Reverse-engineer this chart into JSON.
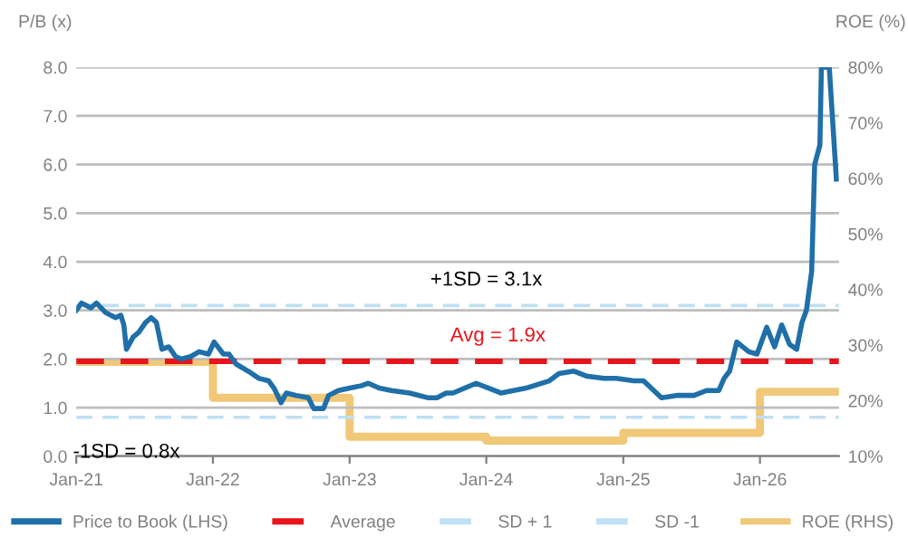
{
  "chart_data": {
    "type": "line",
    "ylabel": "P/B (x)",
    "y2label": "ROE (%)",
    "series": [
      {
        "name": "Price to Book (LHS)",
        "color": "#1f6fa8",
        "x": [
          "2021-01-01",
          "2021-01-15",
          "2021-02-09",
          "2021-02-24",
          "2021-03-21",
          "2021-04-16",
          "2021-04-30",
          "2021-05-08",
          "2021-05-15",
          "2021-06-02",
          "2021-06-17",
          "2021-07-05",
          "2021-07-20",
          "2021-08-03",
          "2021-08-18",
          "2021-09-05",
          "2021-09-23",
          "2021-10-08",
          "2021-11-03",
          "2021-11-25",
          "2021-12-20",
          "2022-01-04",
          "2022-01-29",
          "2022-02-13",
          "2022-03-03",
          "2022-04-05",
          "2022-05-04",
          "2022-05-30",
          "2022-06-13",
          "2022-07-02",
          "2022-07-16",
          "2022-08-11",
          "2022-09-13",
          "2022-09-27",
          "2022-10-23",
          "2022-11-06",
          "2022-12-02",
          "2023-01-01",
          "2023-02-02",
          "2023-02-20",
          "2023-03-21",
          "2023-04-23",
          "2023-06-10",
          "2023-07-31",
          "2023-08-22",
          "2023-09-16",
          "2023-10-04",
          "2023-12-05",
          "2024-02-09",
          "2024-04-16",
          "2024-06-17",
          "2024-07-13",
          "2024-08-22",
          "2024-09-24",
          "2024-11-10",
          "2024-12-13",
          "2025-01-29",
          "2025-02-24",
          "2025-04-13",
          "2025-05-23",
          "2025-07-09",
          "2025-08-11",
          "2025-09-13",
          "2025-09-27",
          "2025-10-12",
          "2025-10-31",
          "2025-12-02",
          "2025-12-24",
          "2026-01-19",
          "2026-02-09",
          "2026-02-28",
          "2026-03-21",
          "2026-04-09",
          "2026-04-23",
          "2026-05-05",
          "2026-05-19",
          "2026-05-27",
          "2026-06-10",
          "2026-06-14",
          "2026-07-05",
          "2026-07-24"
        ],
        "values": [
          3.0,
          3.15,
          3.05,
          3.15,
          2.95,
          2.85,
          2.9,
          2.7,
          2.2,
          2.45,
          2.55,
          2.75,
          2.85,
          2.75,
          2.2,
          2.25,
          2.05,
          2.0,
          2.05,
          2.15,
          2.1,
          2.35,
          2.1,
          2.1,
          1.9,
          1.75,
          1.6,
          1.55,
          1.4,
          1.1,
          1.3,
          1.25,
          1.2,
          0.98,
          0.98,
          1.25,
          1.35,
          1.4,
          1.45,
          1.5,
          1.4,
          1.35,
          1.3,
          1.2,
          1.2,
          1.3,
          1.3,
          1.5,
          1.3,
          1.4,
          1.55,
          1.7,
          1.75,
          1.65,
          1.6,
          1.6,
          1.55,
          1.55,
          1.2,
          1.25,
          1.25,
          1.35,
          1.35,
          1.6,
          1.75,
          2.35,
          2.15,
          2.1,
          2.65,
          2.25,
          2.7,
          2.3,
          2.2,
          2.75,
          3.0,
          3.8,
          6.0,
          6.4,
          8.0,
          8.0,
          5.7
        ]
      },
      {
        "name": "ROE (RHS)",
        "color": "#f0c878",
        "type": "step",
        "axis": "y2",
        "x": [
          "2021-01-01",
          "2022-01-01",
          "2023-01-01",
          "2024-01-01",
          "2025-01-01",
          "2026-01-01",
          "2026-07-24"
        ],
        "values": [
          27,
          20.5,
          13.5,
          12.8,
          14.2,
          21.6,
          21.6
        ]
      }
    ],
    "ref_lines": [
      {
        "axis": "y",
        "value": 1.95,
        "label": "Average",
        "color": "#e8141b",
        "line_style": "dashed"
      },
      {
        "axis": "y",
        "value": 3.1,
        "label": "SD + 1",
        "color": "#bfe0f5",
        "line_style": "dashed"
      },
      {
        "axis": "y",
        "value": 0.8,
        "label": "SD -1",
        "color": "#bfe0f5",
        "line_style": "dashed"
      }
    ],
    "annotations": [
      {
        "text": "+1SD = 3.1x",
        "x": "2024-01-01",
        "y": 3.1
      },
      {
        "text": "Avg = 1.9x",
        "x": "2024-02-01",
        "y": 1.95
      },
      {
        "text": "-1SD = 0.8x",
        "x": "2021-05-15",
        "y": 0.8
      }
    ],
    "xlim": [
      "2021-01-01",
      "2026-07-31"
    ],
    "xticks": [
      {
        "value": "2021-01-01",
        "label": "Jan-21"
      },
      {
        "value": "2022-01-01",
        "label": "Jan-22"
      },
      {
        "value": "2023-01-01",
        "label": "Jan-23"
      },
      {
        "value": "2024-01-01",
        "label": "Jan-24"
      },
      {
        "value": "2025-01-01",
        "label": "Jan-25"
      },
      {
        "value": "2026-01-01",
        "label": "Jan-26"
      }
    ],
    "ylim": [
      0,
      8
    ],
    "yticks": [
      {
        "value": 0,
        "label": "0.0"
      },
      {
        "value": 1,
        "label": "1.0"
      },
      {
        "value": 2,
        "label": "2.0"
      },
      {
        "value": 3,
        "label": "3.0"
      },
      {
        "value": 4,
        "label": "4.0"
      },
      {
        "value": 5,
        "label": "5.0"
      },
      {
        "value": 6,
        "label": "6.0"
      },
      {
        "value": 7,
        "label": "7.0"
      },
      {
        "value": 8,
        "label": "8.0"
      }
    ],
    "y2lim": [
      10,
      80
    ],
    "y2ticks": [
      {
        "value": 10,
        "label": "10%"
      },
      {
        "value": 20,
        "label": "20%"
      },
      {
        "value": 30,
        "label": "30%"
      },
      {
        "value": 40,
        "label": "40%"
      },
      {
        "value": 50,
        "label": "50%"
      },
      {
        "value": 60,
        "label": "60%"
      },
      {
        "value": 70,
        "label": "70%"
      },
      {
        "value": 80,
        "label": "80%"
      }
    ],
    "grid": "y",
    "legend": "bottom"
  }
}
